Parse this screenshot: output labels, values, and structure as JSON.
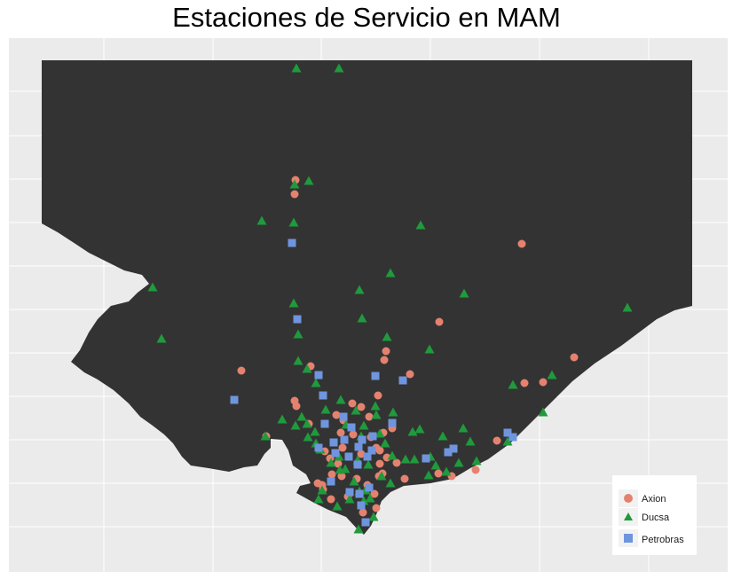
{
  "title": "Estaciones de Servicio en MAM",
  "colors": {
    "panel_background": "#ebebeb",
    "grid": "#ffffff",
    "land": "#333333",
    "Axion": "#e5826f",
    "Ducsa": "#1f9a3c",
    "Petrobras": "#6f95de"
  },
  "legend": {
    "position": "bottom-right",
    "items": [
      {
        "name": "Axion",
        "shape": "circle"
      },
      {
        "name": "Ducsa",
        "shape": "triangle"
      },
      {
        "name": "Petrobras",
        "shape": "square"
      }
    ]
  },
  "stations": {
    "Axion": [
      [
        333,
        203
      ],
      [
        332,
        219
      ],
      [
        588,
        275
      ],
      [
        495,
        363
      ],
      [
        435,
        396
      ],
      [
        433,
        406
      ],
      [
        350,
        413
      ],
      [
        272,
        418
      ],
      [
        462,
        422
      ],
      [
        591,
        432
      ],
      [
        612,
        431
      ],
      [
        647,
        403
      ],
      [
        426,
        446
      ],
      [
        332,
        452
      ],
      [
        334,
        458
      ],
      [
        397,
        455
      ],
      [
        407,
        459
      ],
      [
        416,
        470
      ],
      [
        379,
        468
      ],
      [
        387,
        474
      ],
      [
        348,
        478
      ],
      [
        384,
        488
      ],
      [
        398,
        490
      ],
      [
        432,
        488
      ],
      [
        442,
        483
      ],
      [
        418,
        493
      ],
      [
        300,
        492
      ],
      [
        366,
        509
      ],
      [
        386,
        505
      ],
      [
        372,
        517
      ],
      [
        381,
        523
      ],
      [
        407,
        512
      ],
      [
        428,
        508
      ],
      [
        428,
        523
      ],
      [
        436,
        516
      ],
      [
        427,
        537
      ],
      [
        431,
        534
      ],
      [
        447,
        522
      ],
      [
        456,
        540
      ],
      [
        374,
        535
      ],
      [
        385,
        537
      ],
      [
        402,
        540
      ],
      [
        363,
        547
      ],
      [
        373,
        563
      ],
      [
        392,
        560
      ],
      [
        414,
        547
      ],
      [
        422,
        557
      ],
      [
        409,
        578
      ],
      [
        424,
        573
      ],
      [
        494,
        534
      ],
      [
        509,
        537
      ],
      [
        536,
        530
      ],
      [
        560,
        497
      ],
      [
        424,
        505
      ],
      [
        364,
        552
      ],
      [
        358,
        545
      ]
    ],
    "Ducsa": [
      [
        334,
        77
      ],
      [
        382,
        77
      ],
      [
        348,
        204
      ],
      [
        332,
        208
      ],
      [
        295,
        249
      ],
      [
        331,
        251
      ],
      [
        474,
        254
      ],
      [
        440,
        308
      ],
      [
        172,
        324
      ],
      [
        405,
        327
      ],
      [
        523,
        331
      ],
      [
        331,
        342
      ],
      [
        408,
        359
      ],
      [
        707,
        347
      ],
      [
        182,
        382
      ],
      [
        336,
        377
      ],
      [
        436,
        380
      ],
      [
        484,
        394
      ],
      [
        336,
        407
      ],
      [
        346,
        416
      ],
      [
        356,
        432
      ],
      [
        578,
        434
      ],
      [
        622,
        423
      ],
      [
        384,
        451
      ],
      [
        367,
        462
      ],
      [
        401,
        463
      ],
      [
        423,
        458
      ],
      [
        443,
        465
      ],
      [
        424,
        468
      ],
      [
        612,
        465
      ],
      [
        318,
        473
      ],
      [
        340,
        470
      ],
      [
        333,
        480
      ],
      [
        346,
        478
      ],
      [
        355,
        487
      ],
      [
        347,
        493
      ],
      [
        390,
        479
      ],
      [
        410,
        480
      ],
      [
        407,
        492
      ],
      [
        428,
        489
      ],
      [
        434,
        500
      ],
      [
        465,
        487
      ],
      [
        473,
        484
      ],
      [
        499,
        492
      ],
      [
        522,
        483
      ],
      [
        530,
        498
      ],
      [
        572,
        498
      ],
      [
        299,
        492
      ],
      [
        403,
        519
      ],
      [
        415,
        524
      ],
      [
        442,
        514
      ],
      [
        457,
        518
      ],
      [
        467,
        518
      ],
      [
        485,
        515
      ],
      [
        491,
        525
      ],
      [
        517,
        522
      ],
      [
        537,
        520
      ],
      [
        373,
        522
      ],
      [
        382,
        515
      ],
      [
        383,
        530
      ],
      [
        389,
        529
      ],
      [
        399,
        543
      ],
      [
        412,
        553
      ],
      [
        440,
        545
      ],
      [
        430,
        537
      ],
      [
        483,
        536
      ],
      [
        503,
        532
      ],
      [
        363,
        553
      ],
      [
        380,
        571
      ],
      [
        359,
        563
      ],
      [
        394,
        563
      ],
      [
        405,
        554
      ],
      [
        417,
        562
      ],
      [
        421,
        583
      ],
      [
        404,
        597
      ],
      [
        410,
        565
      ],
      [
        361,
        507
      ],
      [
        356,
        500
      ]
    ],
    "Petrobras": [
      [
        329,
        274
      ],
      [
        335,
        360
      ],
      [
        359,
        423
      ],
      [
        423,
        424
      ],
      [
        454,
        429
      ],
      [
        364,
        446
      ],
      [
        264,
        451
      ],
      [
        366,
        478
      ],
      [
        387,
        470
      ],
      [
        396,
        482
      ],
      [
        420,
        492
      ],
      [
        442,
        477
      ],
      [
        359,
        505
      ],
      [
        376,
        499
      ],
      [
        388,
        496
      ],
      [
        408,
        496
      ],
      [
        419,
        508
      ],
      [
        404,
        504
      ],
      [
        378,
        511
      ],
      [
        393,
        515
      ],
      [
        414,
        515
      ],
      [
        403,
        524
      ],
      [
        480,
        517
      ],
      [
        505,
        510
      ],
      [
        511,
        506
      ],
      [
        572,
        488
      ],
      [
        578,
        493
      ],
      [
        373,
        543
      ],
      [
        394,
        555
      ],
      [
        405,
        557
      ],
      [
        416,
        550
      ],
      [
        407,
        570
      ],
      [
        412,
        589
      ]
    ]
  }
}
